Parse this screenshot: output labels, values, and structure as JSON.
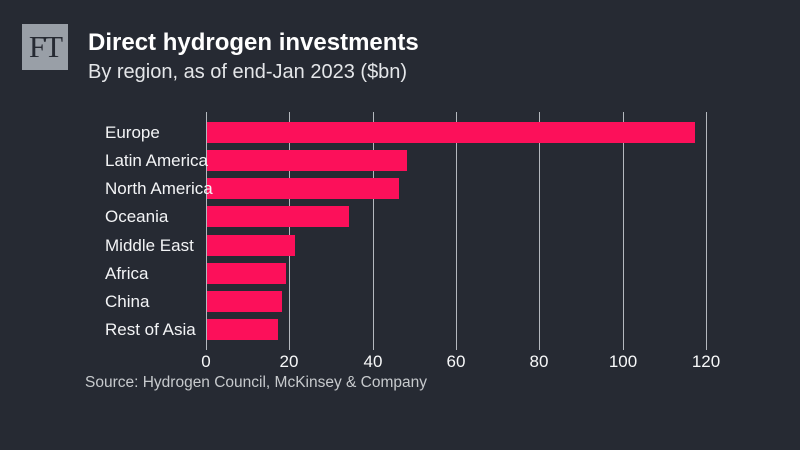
{
  "header": {
    "logo_text": "FT"
  },
  "chart_data": {
    "type": "bar",
    "orientation": "horizontal",
    "title": "Direct hydrogen investments",
    "subtitle": "By region, as of end-Jan 2023 ($bn)",
    "unit": "$bn",
    "categories": [
      "Europe",
      "Latin America",
      "North America",
      "Oceania",
      "Middle East",
      "Africa",
      "China",
      "Rest of Asia"
    ],
    "values": [
      117,
      48,
      46,
      34,
      21,
      19,
      18,
      17
    ],
    "x_ticks": [
      0,
      20,
      40,
      60,
      80,
      100,
      120
    ],
    "xlim": [
      0,
      120
    ],
    "grid": "vertical-gridlines-on",
    "legend": "none",
    "xlabel": "",
    "ylabel": ""
  },
  "source": {
    "text": "Source: Hydrogen Council, McKinsey & Company"
  },
  "colors": {
    "background": "#262a33",
    "bar": "#fc105a",
    "gridline": "#b4b8be",
    "title_text": "#ffffff",
    "subtitle_text": "#e4e6e9",
    "category_text": "#f3f4f6",
    "tick_text": "#f7f8f9",
    "source_text": "#c7cacd",
    "logo_background": "#999fa7",
    "logo_text": "#262a33"
  }
}
